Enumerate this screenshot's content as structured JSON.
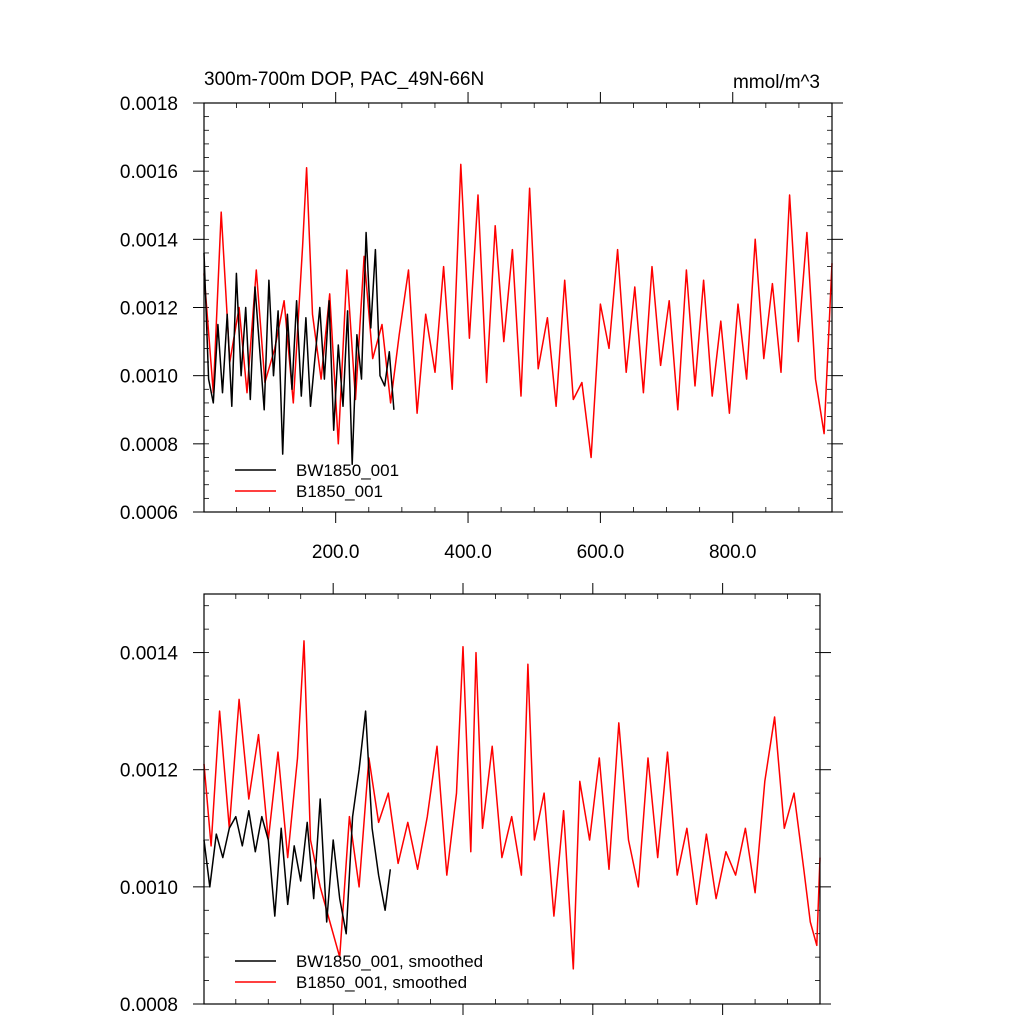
{
  "chart_data": [
    {
      "type": "line",
      "title": "300m-700m DOP, PAC_49N-66N",
      "units": "mmol/m^3",
      "xlabel": "",
      "ylabel": "",
      "xlim": [
        1,
        950
      ],
      "ylim": [
        0.0006,
        0.0018
      ],
      "x_ticks": [
        200,
        400,
        600,
        800
      ],
      "x_tick_labels": [
        "200.0",
        "400.0",
        "600.0",
        "800.0"
      ],
      "y_ticks": [
        0.0006,
        0.0008,
        0.001,
        0.0012,
        0.0014,
        0.0016,
        0.0018
      ],
      "y_tick_labels": [
        "0.0006",
        "0.0008",
        "0.0010",
        "0.0012",
        "0.0014",
        "0.0016",
        "0.0018"
      ],
      "grid": false,
      "legend_position": "bottom-left",
      "series": [
        {
          "name": "BW1850_001",
          "color": "#000000",
          "x": [
            1,
            8,
            15,
            22,
            29,
            36,
            43,
            50,
            57,
            64,
            71,
            78,
            85,
            92,
            99,
            106,
            113,
            120,
            127,
            134,
            141,
            148,
            155,
            162,
            169,
            176,
            183,
            190,
            197,
            204,
            211,
            218,
            225,
            232,
            239,
            246,
            253,
            260,
            267,
            274,
            281,
            288
          ],
          "values": [
            0.00136,
            0.00099,
            0.00092,
            0.00115,
            0.00095,
            0.00118,
            0.00091,
            0.0013,
            0.001,
            0.0012,
            0.00093,
            0.00126,
            0.00108,
            0.0009,
            0.00128,
            0.001,
            0.00119,
            0.00077,
            0.00118,
            0.00096,
            0.00122,
            0.00094,
            0.00117,
            0.00091,
            0.00106,
            0.0012,
            0.00099,
            0.00122,
            0.00084,
            0.00109,
            0.00091,
            0.00119,
            0.00074,
            0.00112,
            0.00099,
            0.00142,
            0.00114,
            0.00137,
            0.001,
            0.00097,
            0.00107,
            0.0009
          ]
        },
        {
          "name": "B1850_001",
          "color": "#ff0000",
          "x": [
            1,
            15,
            27,
            40,
            54,
            66,
            80,
            93,
            108,
            122,
            136,
            150,
            156,
            165,
            178,
            191,
            204,
            217,
            230,
            243,
            256,
            270,
            283,
            296,
            310,
            323,
            336,
            350,
            363,
            376,
            389,
            402,
            415,
            428,
            441,
            454,
            467,
            480,
            493,
            506,
            520,
            533,
            546,
            559,
            572,
            586,
            600,
            613,
            626,
            639,
            652,
            665,
            678,
            691,
            704,
            717,
            730,
            743,
            756,
            769,
            782,
            795,
            808,
            821,
            834,
            847,
            860,
            873,
            886,
            899,
            912,
            925,
            938,
            950
          ],
          "values": [
            0.0013,
            0.00095,
            0.00148,
            0.00104,
            0.0012,
            0.00095,
            0.00131,
            0.00098,
            0.00108,
            0.00122,
            0.00092,
            0.00138,
            0.00161,
            0.00118,
            0.00099,
            0.00124,
            0.0008,
            0.00131,
            0.00093,
            0.00135,
            0.00105,
            0.00115,
            0.00092,
            0.00112,
            0.00131,
            0.00089,
            0.00118,
            0.00101,
            0.00132,
            0.00096,
            0.00162,
            0.00111,
            0.00153,
            0.00098,
            0.00144,
            0.0011,
            0.00137,
            0.00094,
            0.00155,
            0.00102,
            0.00117,
            0.00091,
            0.00128,
            0.00093,
            0.00098,
            0.00076,
            0.00121,
            0.00108,
            0.00137,
            0.00101,
            0.00126,
            0.00095,
            0.00132,
            0.00103,
            0.00122,
            0.0009,
            0.00131,
            0.00097,
            0.00128,
            0.00094,
            0.00116,
            0.00089,
            0.00121,
            0.00099,
            0.0014,
            0.00105,
            0.00127,
            0.00101,
            0.00153,
            0.0011,
            0.00142,
            0.00099,
            0.00083,
            0.00133
          ]
        }
      ]
    },
    {
      "type": "line",
      "title": "",
      "xlabel": "",
      "ylabel": "",
      "xlim": [
        1,
        950
      ],
      "ylim": [
        0.0008,
        0.0015
      ],
      "y_ticks": [
        0.0008,
        0.001,
        0.0012,
        0.0014
      ],
      "y_tick_labels": [
        "0.0008",
        "0.0010",
        "0.0012",
        "0.0014"
      ],
      "grid": false,
      "legend_position": "bottom-left",
      "series": [
        {
          "name": "BW1850_001, smoothed",
          "color": "#000000",
          "x": [
            1,
            10,
            20,
            30,
            40,
            50,
            60,
            70,
            80,
            90,
            100,
            110,
            120,
            130,
            140,
            150,
            160,
            170,
            180,
            190,
            200,
            210,
            220,
            230,
            240,
            250,
            260,
            270,
            280,
            288
          ],
          "values": [
            0.00108,
            0.001,
            0.00109,
            0.00105,
            0.0011,
            0.00112,
            0.00107,
            0.00113,
            0.00106,
            0.00112,
            0.00108,
            0.00095,
            0.0011,
            0.00097,
            0.00107,
            0.00101,
            0.00111,
            0.00098,
            0.00115,
            0.00094,
            0.00108,
            0.00098,
            0.00092,
            0.00112,
            0.0012,
            0.0013,
            0.0011,
            0.00102,
            0.00096,
            0.00103
          ]
        },
        {
          "name": "B1850_001, smoothed",
          "color": "#ff0000",
          "x": [
            1,
            12,
            25,
            40,
            55,
            70,
            85,
            100,
            115,
            130,
            145,
            155,
            165,
            180,
            195,
            210,
            225,
            240,
            255,
            270,
            285,
            300,
            315,
            330,
            345,
            360,
            375,
            390,
            400,
            412,
            420,
            430,
            445,
            460,
            475,
            490,
            500,
            510,
            525,
            540,
            555,
            570,
            580,
            595,
            610,
            625,
            640,
            655,
            670,
            685,
            700,
            715,
            730,
            745,
            760,
            775,
            790,
            805,
            820,
            835,
            850,
            865,
            880,
            895,
            910,
            925,
            935,
            945,
            950
          ],
          "values": [
            0.00121,
            0.00107,
            0.0013,
            0.0011,
            0.00132,
            0.00115,
            0.00126,
            0.00108,
            0.00123,
            0.00105,
            0.00122,
            0.00142,
            0.00108,
            0.001,
            0.00094,
            0.00088,
            0.00112,
            0.001,
            0.00122,
            0.00111,
            0.00116,
            0.00104,
            0.00111,
            0.00103,
            0.00112,
            0.00124,
            0.00102,
            0.00116,
            0.00141,
            0.00106,
            0.0014,
            0.0011,
            0.00124,
            0.00105,
            0.00112,
            0.00102,
            0.00138,
            0.00108,
            0.00116,
            0.00095,
            0.00113,
            0.00086,
            0.00118,
            0.00108,
            0.00122,
            0.00103,
            0.00128,
            0.00108,
            0.001,
            0.00122,
            0.00105,
            0.00123,
            0.00102,
            0.0011,
            0.00097,
            0.00109,
            0.00098,
            0.00106,
            0.00102,
            0.0011,
            0.00099,
            0.00118,
            0.00129,
            0.0011,
            0.00116,
            0.00103,
            0.00094,
            0.0009,
            0.00105
          ]
        }
      ]
    }
  ]
}
